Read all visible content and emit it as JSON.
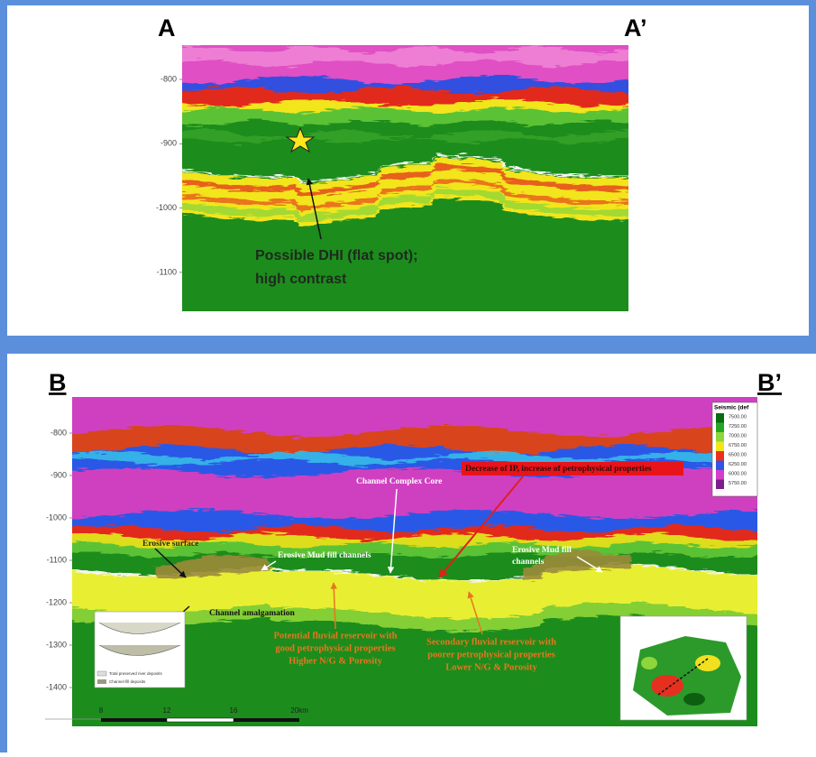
{
  "panel_a": {
    "label_left": "A",
    "label_right": "A’",
    "depth_labels": [
      "-800",
      "-900",
      "-1000",
      "-1100"
    ],
    "annotation": [
      "Possible DHI (flat spot);",
      "high contrast"
    ]
  },
  "panel_b": {
    "label_left": "B",
    "label_right": "B’",
    "depth_labels": [
      "-800",
      "-900",
      "-1000",
      "-1100",
      "-1200",
      "-1300",
      "-1400"
    ],
    "legend": {
      "title": "Seismic (def",
      "values": [
        "7500.00",
        "7250.00",
        "7000.00",
        "6750.00",
        "6500.00",
        "6250.00",
        "6000.00",
        "5750.00"
      ],
      "colors": [
        "#0b6b12",
        "#27a624",
        "#8fd63a",
        "#f2e51c",
        "#e8321e",
        "#2f54e6",
        "#d43fc8",
        "#7a1f8c"
      ]
    },
    "annotations": {
      "erosive_surface": "Erosive surface",
      "mud_fill_left": "Erosive Mud fill channels",
      "complex_core": "Channel Complex Core",
      "ip_decrease": "Decrease of IP, increase of petrophysical properties",
      "mud_fill_right": [
        "Erosive Mud fill",
        "channels"
      ],
      "amalgamation": "Channel amalgamation",
      "potential_reservoir": [
        "Potential fluvial reservoir with",
        "good petrophysical properties",
        "Higher N/G & Porosity"
      ],
      "secondary_reservoir": [
        "Secondary fluvial reservoir with",
        "poorer petrophysical properties",
        "Lower N/G & Porosity"
      ]
    },
    "inset_legend": [
      "Total preserved river deposits",
      "Channel fill deposits"
    ],
    "scale_labels": [
      "8",
      "12",
      "16",
      "20km"
    ]
  }
}
